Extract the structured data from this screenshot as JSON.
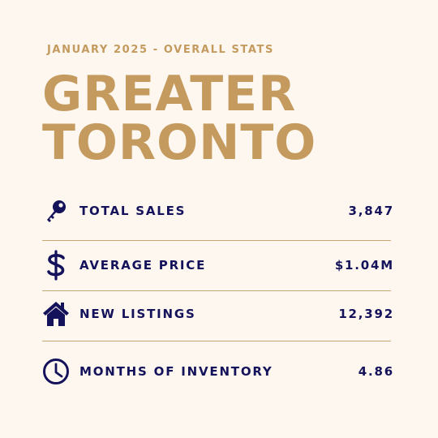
{
  "header": {
    "subtitle": "JANUARY 2025 - OVERALL STATS",
    "title_line1": "GREATER",
    "title_line2": "TORONTO"
  },
  "stats": [
    {
      "icon": "key-icon",
      "label": "TOTAL SALES",
      "value": "3,847"
    },
    {
      "icon": "dollar-sign-icon",
      "label": "AVERAGE PRICE",
      "value": "$1.04M"
    },
    {
      "icon": "house-icon",
      "label": "NEW LISTINGS",
      "value": "12,392"
    },
    {
      "icon": "clock-icon",
      "label": "MONTHS OF INVENTORY",
      "value": "4.86"
    }
  ],
  "colors": {
    "background": "#fdf7ef",
    "gold": "#c49a5e",
    "navy": "#14125a"
  }
}
